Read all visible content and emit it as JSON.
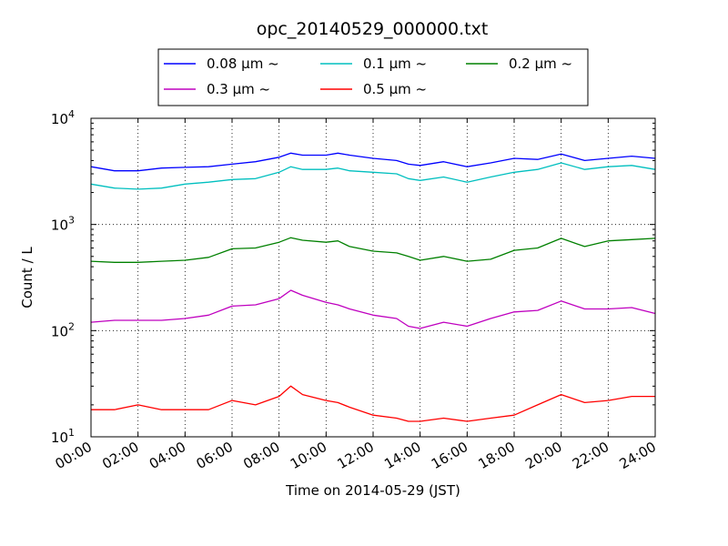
{
  "chart_data": {
    "type": "line",
    "title": "opc_20140529_000000.txt",
    "xlabel": "Time on 2014-05-29 (JST)",
    "ylabel": "Count / L",
    "yscale": "log",
    "ylim": [
      10,
      10000
    ],
    "xlim": [
      0,
      24
    ],
    "grid": true,
    "legend_position": "top",
    "x_tick_labels": [
      "00:00",
      "02:00",
      "04:00",
      "06:00",
      "08:00",
      "10:00",
      "12:00",
      "14:00",
      "16:00",
      "18:00",
      "20:00",
      "22:00",
      "24:00"
    ],
    "y_tick_labels": [
      {
        "value": 10,
        "base": "10",
        "exp": "1"
      },
      {
        "value": 100,
        "base": "10",
        "exp": "2"
      },
      {
        "value": 1000,
        "base": "10",
        "exp": "3"
      },
      {
        "value": 10000,
        "base": "10",
        "exp": "4"
      }
    ],
    "x": [
      0,
      1,
      2,
      3,
      4,
      5,
      6,
      7,
      8,
      8.5,
      9,
      10,
      10.5,
      11,
      12,
      13,
      13.5,
      14,
      15,
      16,
      17,
      18,
      19,
      20,
      21,
      22,
      23,
      24
    ],
    "series": [
      {
        "name": "0.08 μm ~",
        "color": "#0000ff",
        "values": [
          3500,
          3200,
          3200,
          3400,
          3450,
          3500,
          3700,
          3900,
          4300,
          4700,
          4500,
          4500,
          4700,
          4500,
          4200,
          4000,
          3700,
          3600,
          3900,
          3500,
          3800,
          4200,
          4100,
          4600,
          4000,
          4200,
          4400,
          4200
        ]
      },
      {
        "name": "0.1 μm ~",
        "color": "#00bfbf",
        "values": [
          2400,
          2200,
          2150,
          2200,
          2400,
          2500,
          2650,
          2700,
          3100,
          3500,
          3300,
          3300,
          3400,
          3200,
          3100,
          3000,
          2700,
          2600,
          2800,
          2500,
          2800,
          3100,
          3300,
          3800,
          3300,
          3500,
          3600,
          3300
        ]
      },
      {
        "name": "0.2 μm ~",
        "color": "#008000",
        "values": [
          450,
          440,
          440,
          450,
          460,
          490,
          590,
          600,
          680,
          750,
          710,
          680,
          700,
          620,
          560,
          540,
          500,
          460,
          500,
          450,
          470,
          570,
          600,
          740,
          620,
          700,
          720,
          740
        ]
      },
      {
        "name": "0.3 μm ~",
        "color": "#bf00bf",
        "values": [
          120,
          125,
          125,
          125,
          130,
          140,
          170,
          175,
          200,
          240,
          215,
          185,
          175,
          160,
          140,
          130,
          110,
          105,
          120,
          110,
          130,
          150,
          155,
          190,
          160,
          160,
          165,
          145
        ]
      },
      {
        "name": "0.5 μm ~",
        "color": "#ff0000",
        "values": [
          18,
          18,
          20,
          18,
          18,
          18,
          22,
          20,
          24,
          30,
          25,
          22,
          21,
          19,
          16,
          15,
          14,
          14,
          15,
          14,
          15,
          16,
          20,
          25,
          21,
          22,
          24,
          24
        ]
      }
    ]
  }
}
